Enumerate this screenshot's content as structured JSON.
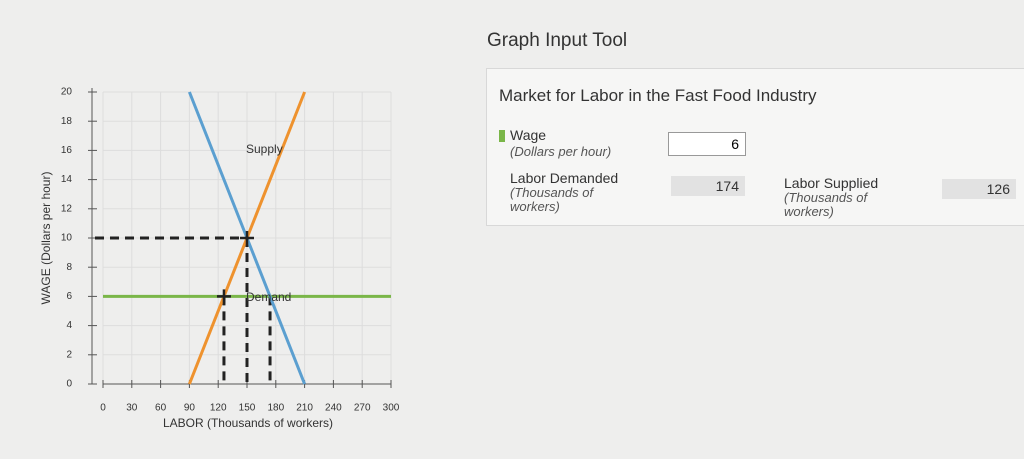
{
  "chart_data": {
    "type": "line",
    "x_label": "LABOR (Thousands of workers)",
    "y_label": "WAGE (Dollars per hour)",
    "xlim": [
      0,
      300
    ],
    "xticks": [
      0,
      30,
      60,
      90,
      120,
      150,
      180,
      210,
      240,
      270,
      300
    ],
    "ylim": [
      0,
      20
    ],
    "yticks": [
      0,
      2,
      4,
      6,
      8,
      10,
      12,
      14,
      16,
      18,
      20
    ],
    "grid": true,
    "series": [
      {
        "name": "Supply",
        "color": "#ee922e",
        "x": [
          90,
          210
        ],
        "values": [
          0,
          20
        ]
      },
      {
        "name": "Demand",
        "color": "#5b9fd0",
        "x": [
          90,
          210
        ],
        "values": [
          20,
          0
        ]
      }
    ],
    "hline": {
      "y": 6,
      "color": "#7ab648"
    },
    "guides": [
      {
        "x": 150,
        "y": 10,
        "horizontal": true,
        "marker": true
      },
      {
        "x": 126,
        "y": 6,
        "marker": true
      },
      {
        "x": 174,
        "y": 6
      }
    ]
  },
  "tool": {
    "title": "Graph Input Tool",
    "heading": "Market for Labor in the Fast Food Industry",
    "fields": [
      {
        "label": "Wage",
        "unit": "(Dollars per hour)",
        "value": 6
      },
      {
        "label": "Labor Demanded",
        "unit": "(Thousands of workers)",
        "value": 174
      },
      {
        "label": "Labor Supplied",
        "unit": "(Thousands of workers)",
        "value": 126
      }
    ]
  }
}
